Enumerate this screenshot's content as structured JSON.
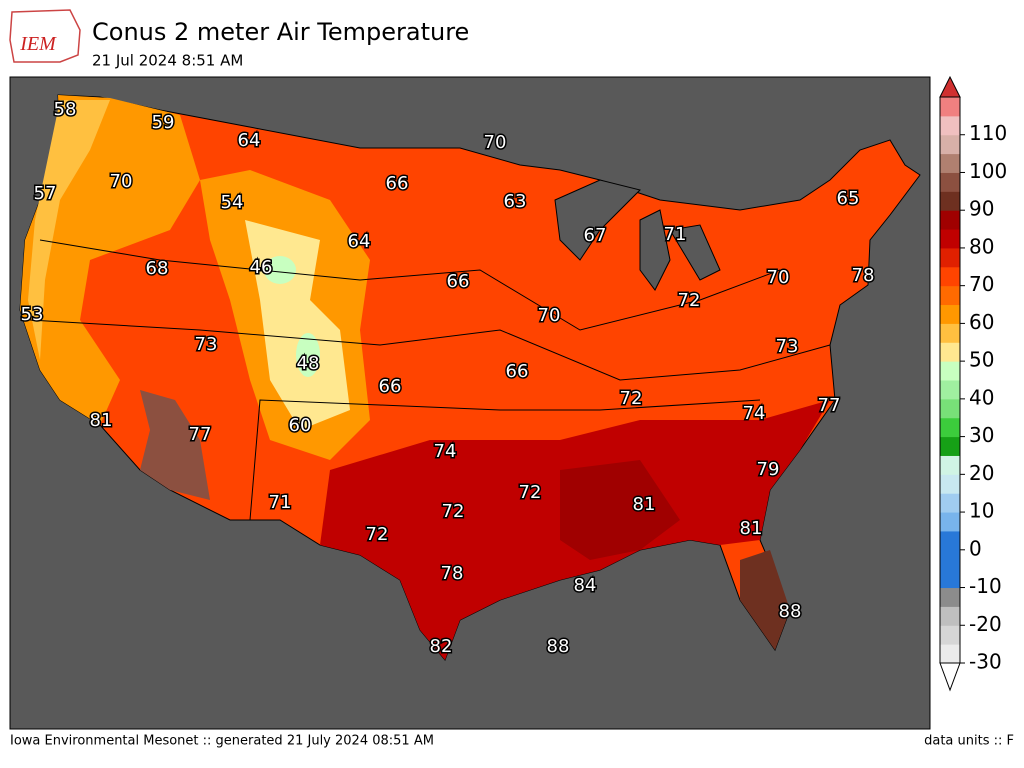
{
  "header": {
    "logo": "IEM",
    "title": "Conus 2 meter Air Temperature",
    "subtitle": "21 Jul 2024 8:51 AM"
  },
  "map": {
    "labels": [
      58,
      59,
      64,
      70,
      57,
      70,
      66,
      63,
      54,
      65,
      67,
      71,
      64,
      46,
      68,
      66,
      70,
      78,
      72,
      53,
      70,
      73,
      73,
      48,
      66,
      66,
      72,
      77,
      81,
      77,
      74,
      60,
      74,
      79,
      72,
      81,
      71,
      72,
      81,
      72,
      78,
      84,
      88,
      82,
      88
    ]
  },
  "colorbar": {
    "lim": [
      -30,
      120
    ],
    "ticks": [
      -30,
      -20,
      -10,
      0,
      10,
      20,
      30,
      40,
      50,
      60,
      70,
      80,
      90,
      100,
      110
    ],
    "colors": [
      "#ebebeb",
      "#d6d6d6",
      "#bfbfbf",
      "#8c8c8c",
      "#2878d8",
      "#2878d8",
      "#2878d8",
      "#78b4ec",
      "#a0ccf0",
      "#c8e8f0",
      "#d0f4e4",
      "#16a016",
      "#3ccc3c",
      "#78e078",
      "#a0f0a0",
      "#c8ffc0",
      "#ffe890",
      "#ffc040",
      "#ff9800",
      "#ff6a00",
      "#ff4400",
      "#e02000",
      "#c00000",
      "#a00000",
      "#6e3020",
      "#8c5040",
      "#b08070",
      "#d8b0a8",
      "#f0c0c0",
      "#f08080"
    ],
    "under_color": "#ffffff",
    "over_color": "#d03030"
  },
  "footer": {
    "left": "Iowa Environmental Mesonet :: generated 21 July 2024 08:51 AM",
    "right": "data units :: F"
  }
}
